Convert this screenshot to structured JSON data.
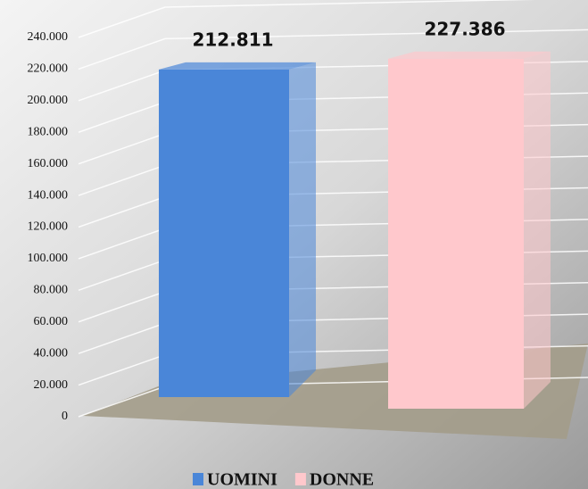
{
  "chart_data": {
    "type": "bar3d",
    "series": [
      {
        "name": "UOMINI",
        "color": "#4a86d8",
        "values": [
          212811
        ],
        "value_labels": [
          "212.811"
        ]
      },
      {
        "name": "DONNE",
        "color": "#ffc8cc",
        "values": [
          227386
        ],
        "value_labels": [
          "227.386"
        ]
      }
    ],
    "ylim": [
      0,
      240000
    ],
    "yticks": [
      0,
      {
        "value": 20000,
        "label": "20.000"
      },
      {
        "value": 40000,
        "label": "40.000"
      },
      {
        "value": 60000,
        "label": "60.000"
      },
      {
        "value": 80000,
        "label": "80.000"
      },
      {
        "value": 100000,
        "label": "100.000"
      },
      {
        "value": 120000,
        "label": "120.000"
      },
      {
        "value": 140000,
        "label": "140.000"
      },
      {
        "value": 160000,
        "label": "160.000"
      },
      {
        "value": 180000,
        "label": "180.000"
      },
      {
        "value": 200000,
        "label": "200.000"
      },
      {
        "value": 220000,
        "label": "220.000"
      },
      {
        "value": 240000,
        "label": "240.000"
      }
    ],
    "grid": true,
    "legend": "bottom"
  }
}
